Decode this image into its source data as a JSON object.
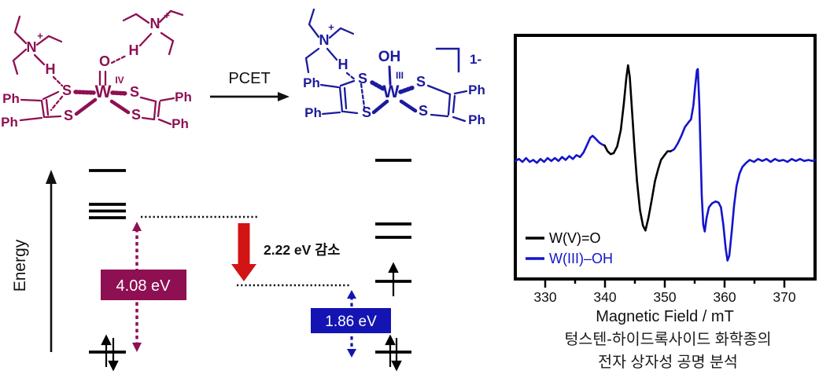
{
  "reaction": {
    "arrow_label": "PCET"
  },
  "structures": {
    "reactant": {
      "color": "#8e1052",
      "atoms": {
        "N1": "N",
        "plus1": "+",
        "H1": "H",
        "Ph1": "Ph",
        "Ph2": "Ph",
        "S1": "S",
        "S2": "S",
        "O": "O",
        "W": "W",
        "ox": "IV",
        "S3": "S",
        "S4": "S",
        "Ph3": "Ph",
        "Ph4": "Ph",
        "H2": "H",
        "N2": "N",
        "plus2": "+"
      }
    },
    "product": {
      "color": "#1b1b9e",
      "charge": "1-",
      "atoms": {
        "N": "N",
        "plus": "+",
        "H": "H",
        "Ph1": "Ph",
        "Ph2": "Ph",
        "S1": "S",
        "S2": "S",
        "OH": "OH",
        "W": "W",
        "ox": "III",
        "S3": "S",
        "S4": "S",
        "Ph3": "Ph",
        "Ph4": "Ph"
      }
    }
  },
  "energy_diagram": {
    "axis_label": "Energy",
    "gap_left_label": "4.08 eV",
    "gap_left_color": "#8e1052",
    "drop_label": "2.22 eV 감소",
    "drop_arrow_color": "#d21414",
    "gap_right_label": "1.86 eV",
    "gap_right_color": "#1414b4"
  },
  "epr": {
    "xlabel": "Magnetic Field / mT",
    "ticks": [
      "330",
      "340",
      "350",
      "360",
      "370"
    ],
    "legend": [
      {
        "label": "W(V)=O",
        "color": "#000000"
      },
      {
        "label": "W(III)–OH",
        "color": "#1414cc"
      }
    ]
  },
  "caption": {
    "line1": "텅스텐-하이드록사이드 화학종의",
    "line2": "전자 상자성 공명 분석"
  },
  "chart_data": {
    "type": "line",
    "title": "",
    "xlabel": "Magnetic Field / mT",
    "ylabel": "",
    "xlim": [
      325,
      375
    ],
    "x_ticks": [
      330,
      340,
      350,
      360,
      370
    ],
    "grid": false,
    "legend_position": "lower left",
    "series": [
      {
        "name": "W(V)=O",
        "color": "#000000",
        "segments": [
          [
            [
              339.9,
              0.17
            ],
            [
              340.4,
              0.11
            ],
            [
              340.9,
              0.08
            ],
            [
              341.4,
              0.09
            ],
            [
              342.0,
              0.16
            ],
            [
              342.6,
              0.33
            ],
            [
              343.1,
              0.6
            ],
            [
              343.5,
              0.86
            ],
            [
              343.8,
              1.0
            ],
            [
              344.1,
              0.88
            ],
            [
              344.5,
              0.5
            ],
            [
              344.9,
              0.13
            ],
            [
              345.3,
              -0.2
            ],
            [
              345.8,
              -0.5
            ],
            [
              346.3,
              -0.66
            ],
            [
              346.7,
              -0.71
            ],
            [
              347.2,
              -0.58
            ],
            [
              347.8,
              -0.38
            ],
            [
              348.3,
              -0.2
            ],
            [
              348.8,
              -0.08
            ],
            [
              349.3,
              0.02
            ],
            [
              349.9,
              0.07
            ],
            [
              350.4,
              0.11
            ],
            [
              350.9,
              0.11
            ]
          ]
        ]
      },
      {
        "name": "W(III)–OH",
        "color": "#1414cc",
        "segments": [
          [
            [
              325.0,
              0.01
            ],
            [
              325.6,
              0.03
            ],
            [
              326.2,
              0.0
            ],
            [
              326.8,
              0.04
            ],
            [
              327.4,
              0.0
            ],
            [
              328.0,
              0.02
            ],
            [
              328.6,
              -0.01
            ],
            [
              329.2,
              0.03
            ],
            [
              329.8,
              0.0
            ],
            [
              330.4,
              0.04
            ],
            [
              331.0,
              0.01
            ],
            [
              331.6,
              0.04
            ],
            [
              332.2,
              0.01
            ],
            [
              332.8,
              0.05
            ],
            [
              333.4,
              0.02
            ],
            [
              334.0,
              0.06
            ],
            [
              334.6,
              0.03
            ],
            [
              335.2,
              0.07
            ],
            [
              335.8,
              0.05
            ],
            [
              336.4,
              0.1
            ],
            [
              337.0,
              0.18
            ],
            [
              337.5,
              0.25
            ],
            [
              337.9,
              0.27
            ],
            [
              338.4,
              0.24
            ],
            [
              339.0,
              0.2
            ],
            [
              339.5,
              0.18
            ],
            [
              339.9,
              0.17
            ]
          ],
          [
            [
              350.9,
              0.11
            ],
            [
              351.5,
              0.13
            ],
            [
              352.1,
              0.19
            ],
            [
              352.7,
              0.27
            ],
            [
              353.3,
              0.36
            ],
            [
              353.9,
              0.41
            ],
            [
              354.3,
              0.44
            ],
            [
              354.7,
              0.58
            ],
            [
              355.0,
              0.78
            ],
            [
              355.3,
              0.95
            ],
            [
              355.45,
              0.96
            ],
            [
              355.7,
              0.6
            ],
            [
              355.9,
              0.1
            ],
            [
              356.1,
              -0.35
            ],
            [
              356.35,
              -0.65
            ],
            [
              356.6,
              -0.72
            ],
            [
              356.9,
              -0.58
            ],
            [
              357.3,
              -0.47
            ],
            [
              357.8,
              -0.43
            ],
            [
              358.4,
              -0.41
            ],
            [
              358.9,
              -0.42
            ],
            [
              359.3,
              -0.47
            ],
            [
              359.7,
              -0.65
            ],
            [
              360.1,
              -0.9
            ],
            [
              360.4,
              -1.02
            ],
            [
              360.7,
              -0.97
            ],
            [
              361.1,
              -0.72
            ],
            [
              361.5,
              -0.45
            ],
            [
              361.9,
              -0.25
            ],
            [
              362.4,
              -0.12
            ],
            [
              362.9,
              -0.05
            ],
            [
              363.5,
              -0.01
            ],
            [
              364.1,
              0.02
            ],
            [
              364.8,
              0.0
            ],
            [
              365.5,
              0.03
            ],
            [
              366.2,
              0.01
            ],
            [
              366.9,
              0.03
            ],
            [
              367.6,
              0.0
            ],
            [
              368.3,
              0.03
            ],
            [
              369.0,
              0.01
            ],
            [
              369.7,
              0.02
            ],
            [
              370.4,
              0.0
            ],
            [
              371.1,
              0.03
            ],
            [
              371.8,
              0.01
            ],
            [
              372.5,
              0.03
            ],
            [
              373.2,
              0.01
            ],
            [
              373.9,
              0.02
            ],
            [
              374.5,
              0.01
            ],
            [
              375.0,
              0.02
            ]
          ]
        ]
      }
    ]
  }
}
